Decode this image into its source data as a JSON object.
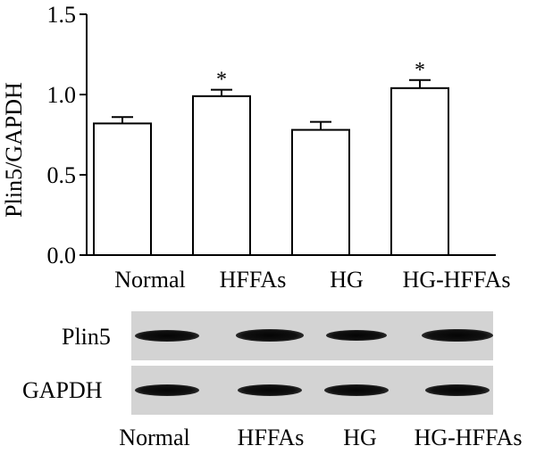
{
  "chart_data": {
    "type": "bar",
    "categories": [
      "Normal",
      "HFFAs",
      "HG",
      "HG-HFFAs"
    ],
    "values": [
      0.82,
      0.99,
      0.78,
      1.04
    ],
    "errors": [
      0.04,
      0.04,
      0.05,
      0.05
    ],
    "significance": [
      "",
      "*",
      "",
      "*"
    ],
    "ylabel": "Plin5/GAPDH",
    "ylim": [
      0,
      1.5
    ],
    "yticks": [
      0.0,
      0.5,
      1.0,
      1.5
    ],
    "ytick_labels": [
      "0.0",
      "0.5",
      "1.0",
      "1.5"
    ],
    "bar_fill": "#ffffff",
    "bar_edge": "#000000",
    "grid": false
  },
  "blot": {
    "rows": [
      {
        "label": "Plin5",
        "band_intensity": [
          1.0,
          1.05,
          0.95,
          1.1
        ]
      },
      {
        "label": "GAPDH",
        "band_intensity": [
          1.0,
          1.0,
          1.0,
          1.0
        ]
      }
    ],
    "lanes": [
      "Normal",
      "HFFAs",
      "HG",
      "HG-HFFAs"
    ],
    "background": "#d3d3d3",
    "band_color": "#111111"
  }
}
